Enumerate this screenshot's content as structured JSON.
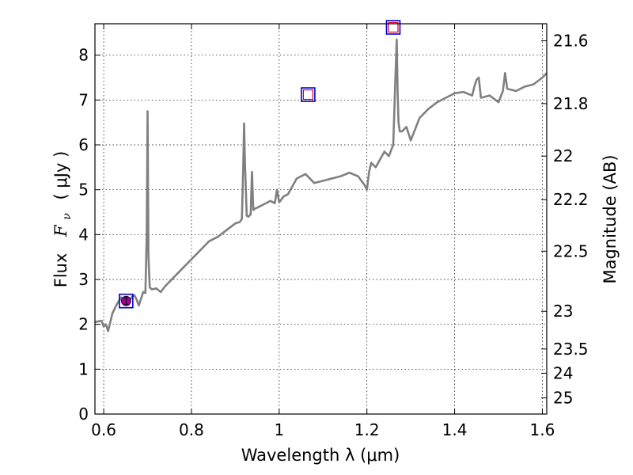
{
  "chart_data": {
    "type": "line",
    "xlabel": "Wavelength  λ (μm)",
    "ylabel_text": "Flux",
    "ylabel_math": "F",
    "ylabel_sub": "ν",
    "ylabel_unit": "( μJy )",
    "y2label": "Magnitude (AB)",
    "xlim": [
      0.58,
      1.61
    ],
    "ylim": [
      0,
      8.7
    ],
    "grid": true,
    "x_ticks": [
      0.6,
      0.8,
      1.0,
      1.2,
      1.4,
      1.6
    ],
    "x_tick_labels": [
      "0.6",
      "0.8",
      "1",
      "1.2",
      "1.4",
      "1.6"
    ],
    "y_ticks": [
      0,
      1,
      2,
      3,
      4,
      5,
      6,
      7,
      8
    ],
    "y_tick_labels": [
      "0",
      "1",
      "2",
      "3",
      "4",
      "5",
      "6",
      "7",
      "8"
    ],
    "y2_ticks": [
      {
        "flux": 8.32,
        "label": "21.6"
      },
      {
        "flux": 6.92,
        "label": "21.8"
      },
      {
        "flux": 5.75,
        "label": "22"
      },
      {
        "flux": 4.78,
        "label": "22.2"
      },
      {
        "flux": 3.63,
        "label": "22.5"
      },
      {
        "flux": 2.29,
        "label": "23"
      },
      {
        "flux": 1.45,
        "label": "23.5"
      },
      {
        "flux": 0.91,
        "label": "24"
      },
      {
        "flux": 0.36,
        "label": "25"
      }
    ],
    "spectrum": {
      "color": "#808080",
      "x": [
        0.58,
        0.595,
        0.6,
        0.605,
        0.61,
        0.62,
        0.63,
        0.64,
        0.65,
        0.66,
        0.665,
        0.67,
        0.675,
        0.68,
        0.69,
        0.695,
        0.698,
        0.7,
        0.702,
        0.705,
        0.71,
        0.72,
        0.73,
        0.74,
        0.75,
        0.76,
        0.78,
        0.8,
        0.82,
        0.84,
        0.86,
        0.88,
        0.9,
        0.91,
        0.915,
        0.918,
        0.92,
        0.922,
        0.926,
        0.93,
        0.935,
        0.938,
        0.941,
        0.945,
        0.95,
        0.96,
        0.98,
        0.99,
        0.995,
        1.0,
        1.01,
        1.02,
        1.04,
        1.06,
        1.08,
        1.1,
        1.12,
        1.14,
        1.16,
        1.18,
        1.195,
        1.2,
        1.205,
        1.21,
        1.22,
        1.24,
        1.25,
        1.26,
        1.265,
        1.268,
        1.27,
        1.272,
        1.275,
        1.28,
        1.29,
        1.3,
        1.32,
        1.34,
        1.36,
        1.38,
        1.4,
        1.42,
        1.44,
        1.445,
        1.45,
        1.455,
        1.46,
        1.48,
        1.5,
        1.51,
        1.515,
        1.52,
        1.54,
        1.56,
        1.58,
        1.6,
        1.61
      ],
      "y": [
        2.05,
        2.08,
        1.95,
        2.0,
        1.85,
        2.25,
        2.45,
        2.6,
        2.5,
        2.55,
        2.62,
        2.65,
        2.55,
        2.42,
        2.72,
        2.7,
        4.0,
        6.75,
        3.5,
        2.82,
        2.78,
        2.8,
        2.72,
        2.85,
        2.95,
        3.05,
        3.25,
        3.45,
        3.65,
        3.85,
        3.95,
        4.1,
        4.25,
        4.28,
        4.35,
        5.5,
        6.48,
        5.6,
        4.42,
        4.4,
        4.45,
        5.4,
        4.55,
        4.58,
        4.6,
        4.65,
        4.75,
        4.7,
        5.0,
        4.72,
        4.85,
        4.9,
        5.25,
        5.35,
        5.15,
        5.2,
        5.25,
        5.3,
        5.38,
        5.3,
        5.1,
        5.0,
        5.4,
        5.6,
        5.5,
        5.85,
        5.75,
        6.0,
        7.5,
        8.35,
        7.2,
        6.5,
        6.3,
        6.3,
        6.4,
        6.1,
        6.6,
        6.8,
        6.95,
        7.05,
        7.15,
        7.18,
        7.1,
        7.3,
        7.45,
        7.5,
        7.05,
        7.1,
        6.95,
        7.2,
        7.6,
        7.25,
        7.2,
        7.3,
        7.35,
        7.5,
        7.6
      ]
    },
    "photometry": [
      {
        "x": 0.651,
        "y": 2.52,
        "marker": "square",
        "edgecolor": "#0000cc",
        "fill": "none",
        "inner_edge": "#a000a0",
        "inner_fill": "#a000a0"
      },
      {
        "x": 1.066,
        "y": 7.12,
        "marker": "square",
        "edgecolor": "#0000cc",
        "fill": "none",
        "inner_edge": "#cc0033",
        "inner_fill": "#ffffff"
      },
      {
        "x": 1.26,
        "y": 8.62,
        "marker": "square",
        "edgecolor": "#0000cc",
        "fill": "none",
        "inner_edge": "#cc0033",
        "inner_fill": "#ffffff"
      }
    ]
  }
}
